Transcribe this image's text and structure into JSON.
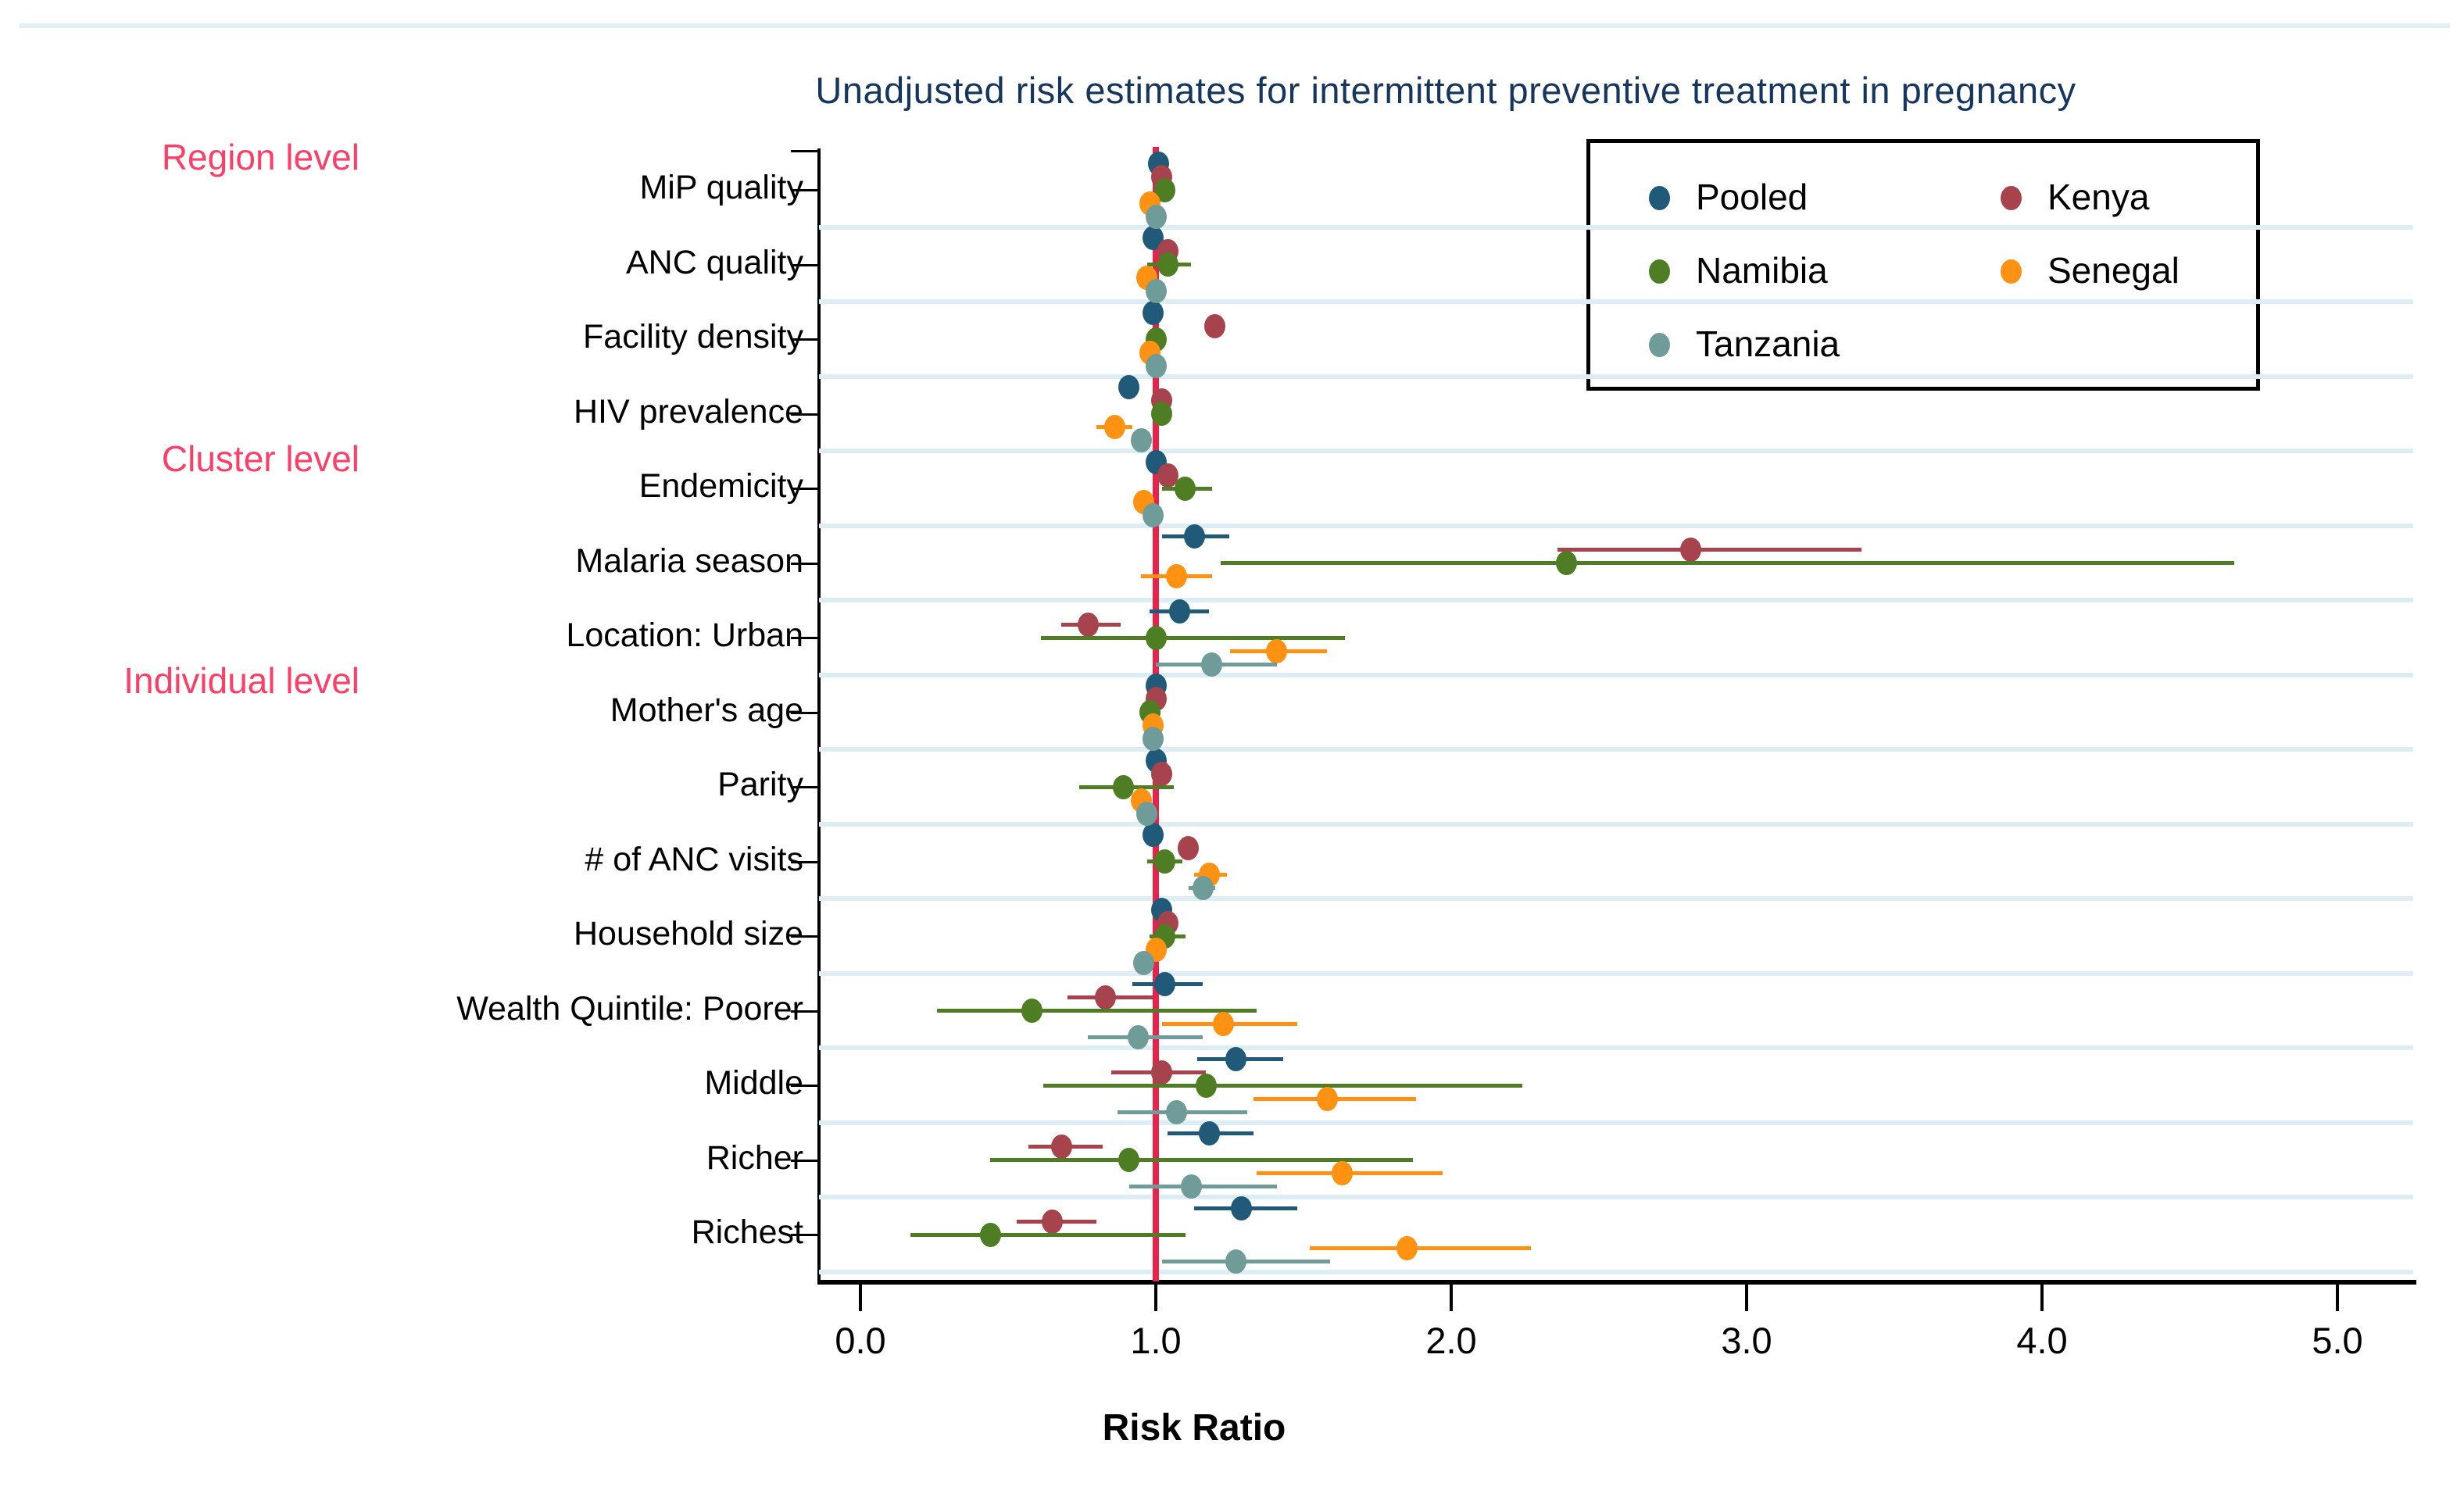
{
  "title": "Unadjusted risk estimates for intermittent preventive treatment in pregnancy",
  "xlabel": "Risk Ratio",
  "group_labels": [
    {
      "text": "Region level",
      "y": 202
    },
    {
      "text": "Cluster level",
      "y": 588
    },
    {
      "text": "Individual level",
      "y": 872
    }
  ],
  "legend": {
    "items": [
      {
        "label": "Pooled",
        "color": "#205a78",
        "col": 0,
        "row": 0
      },
      {
        "label": "Kenya",
        "color": "#a6434c",
        "col": 1,
        "row": 0
      },
      {
        "label": "Namibia",
        "color": "#4e7d24",
        "col": 0,
        "row": 1
      },
      {
        "label": "Senegal",
        "color": "#ff9212",
        "col": 1,
        "row": 1
      },
      {
        "label": "Tanzania",
        "color": "#6f9b98",
        "col": 0,
        "row": 2
      }
    ]
  },
  "colors": {
    "reference_line": "#e6234b",
    "gridline": "#dceef3",
    "title": "#17365d",
    "group_label": "#fa3f68",
    "axis": "#000000"
  },
  "chart_data": {
    "type": "scatter",
    "subtype": "forest-plot",
    "title": "Unadjusted risk estimates for intermittent preventive treatment in pregnancy",
    "xlabel": "Risk Ratio",
    "xlim": [
      0,
      5.15
    ],
    "x_ticks": [
      {
        "value": 0,
        "label": "0.0"
      },
      {
        "value": 1,
        "label": "1.0"
      },
      {
        "value": 2,
        "label": "2.0"
      },
      {
        "value": 3,
        "label": "3.0"
      },
      {
        "value": 4,
        "label": "4.0"
      },
      {
        "value": 5,
        "label": "5.0"
      }
    ],
    "reference_line_x": 1.0,
    "legend_position": "top-right",
    "grid": "between-rows",
    "categories": [
      "MiP quality",
      "ANC quality",
      "Facility density",
      "HIV prevalence",
      "Endemicity",
      "Malaria season",
      "Location: Urban",
      "Mother's age",
      "Parity",
      "# of ANC visits",
      "Household size",
      "Wealth Quintile: Poorer",
      "Middle",
      "Richer",
      "Richest"
    ],
    "series": [
      {
        "name": "Pooled",
        "color": "#205a78",
        "values": [
          {
            "rr": 1.01,
            "lo": 1.01,
            "hi": 1.01
          },
          {
            "rr": 0.99,
            "lo": 0.99,
            "hi": 0.99
          },
          {
            "rr": 0.99,
            "lo": 0.99,
            "hi": 0.99
          },
          {
            "rr": 0.91,
            "lo": 0.91,
            "hi": 0.91
          },
          {
            "rr": 1.0,
            "lo": 1.0,
            "hi": 1.0
          },
          {
            "rr": 1.13,
            "lo": 1.02,
            "hi": 1.25
          },
          {
            "rr": 1.08,
            "lo": 0.98,
            "hi": 1.18
          },
          {
            "rr": 1.0,
            "lo": 1.0,
            "hi": 1.0
          },
          {
            "rr": 1.0,
            "lo": 1.0,
            "hi": 1.0
          },
          {
            "rr": 0.99,
            "lo": 0.99,
            "hi": 0.99
          },
          {
            "rr": 1.02,
            "lo": 1.02,
            "hi": 1.02
          },
          {
            "rr": 1.03,
            "lo": 0.92,
            "hi": 1.16
          },
          {
            "rr": 1.27,
            "lo": 1.14,
            "hi": 1.43
          },
          {
            "rr": 1.18,
            "lo": 1.04,
            "hi": 1.33
          },
          {
            "rr": 1.29,
            "lo": 1.13,
            "hi": 1.48
          }
        ]
      },
      {
        "name": "Kenya",
        "color": "#a6434c",
        "values": [
          {
            "rr": 1.02,
            "lo": 1.02,
            "hi": 1.02
          },
          {
            "rr": 1.04,
            "lo": 1.04,
            "hi": 1.04
          },
          {
            "rr": 1.2,
            "lo": 1.2,
            "hi": 1.2
          },
          {
            "rr": 1.02,
            "lo": 1.02,
            "hi": 1.02
          },
          {
            "rr": 1.04,
            "lo": 1.04,
            "hi": 1.04
          },
          {
            "rr": 2.81,
            "lo": 2.36,
            "hi": 3.39
          },
          {
            "rr": 0.77,
            "lo": 0.68,
            "hi": 0.88
          },
          {
            "rr": 1.0,
            "lo": 1.0,
            "hi": 1.0
          },
          {
            "rr": 1.02,
            "lo": 1.02,
            "hi": 1.02
          },
          {
            "rr": 1.11,
            "lo": 1.11,
            "hi": 1.11
          },
          {
            "rr": 1.04,
            "lo": 1.04,
            "hi": 1.04
          },
          {
            "rr": 0.83,
            "lo": 0.7,
            "hi": 0.99
          },
          {
            "rr": 1.02,
            "lo": 0.85,
            "hi": 1.17
          },
          {
            "rr": 0.68,
            "lo": 0.57,
            "hi": 0.82
          },
          {
            "rr": 0.65,
            "lo": 0.53,
            "hi": 0.8
          }
        ]
      },
      {
        "name": "Namibia",
        "color": "#4e7d24",
        "values": [
          {
            "rr": 1.03,
            "lo": 1.03,
            "hi": 1.03
          },
          {
            "rr": 1.04,
            "lo": 0.97,
            "hi": 1.12
          },
          {
            "rr": 1.0,
            "lo": 1.0,
            "hi": 1.0
          },
          {
            "rr": 1.02,
            "lo": 1.02,
            "hi": 1.02
          },
          {
            "rr": 1.1,
            "lo": 1.02,
            "hi": 1.19
          },
          {
            "rr": 2.39,
            "lo": 1.22,
            "hi": 4.65
          },
          {
            "rr": 1.0,
            "lo": 0.61,
            "hi": 1.64
          },
          {
            "rr": 0.98,
            "lo": 0.98,
            "hi": 0.98
          },
          {
            "rr": 0.89,
            "lo": 0.74,
            "hi": 1.06
          },
          {
            "rr": 1.03,
            "lo": 0.97,
            "hi": 1.09
          },
          {
            "rr": 1.03,
            "lo": 0.98,
            "hi": 1.1
          },
          {
            "rr": 0.58,
            "lo": 0.26,
            "hi": 1.34
          },
          {
            "rr": 1.17,
            "lo": 0.62,
            "hi": 2.24
          },
          {
            "rr": 0.91,
            "lo": 0.44,
            "hi": 1.87
          },
          {
            "rr": 0.44,
            "lo": 0.17,
            "hi": 1.1
          }
        ]
      },
      {
        "name": "Senegal",
        "color": "#ff9212",
        "values": [
          {
            "rr": 0.98,
            "lo": 0.98,
            "hi": 0.98
          },
          {
            "rr": 0.97,
            "lo": 0.97,
            "hi": 0.97
          },
          {
            "rr": 0.98,
            "lo": 0.98,
            "hi": 0.98
          },
          {
            "rr": 0.86,
            "lo": 0.8,
            "hi": 0.92
          },
          {
            "rr": 0.96,
            "lo": 0.96,
            "hi": 0.96
          },
          {
            "rr": 1.07,
            "lo": 0.95,
            "hi": 1.19
          },
          {
            "rr": 1.41,
            "lo": 1.25,
            "hi": 1.58
          },
          {
            "rr": 0.99,
            "lo": 0.99,
            "hi": 0.99
          },
          {
            "rr": 0.95,
            "lo": 0.95,
            "hi": 0.95
          },
          {
            "rr": 1.18,
            "lo": 1.13,
            "hi": 1.24
          },
          {
            "rr": 1.0,
            "lo": 1.0,
            "hi": 1.0
          },
          {
            "rr": 1.23,
            "lo": 1.02,
            "hi": 1.48
          },
          {
            "rr": 1.58,
            "lo": 1.33,
            "hi": 1.88
          },
          {
            "rr": 1.63,
            "lo": 1.34,
            "hi": 1.97
          },
          {
            "rr": 1.85,
            "lo": 1.52,
            "hi": 2.27
          }
        ]
      },
      {
        "name": "Tanzania",
        "color": "#6f9b98",
        "values": [
          {
            "rr": 1.0,
            "lo": 1.0,
            "hi": 1.0
          },
          {
            "rr": 1.0,
            "lo": 1.0,
            "hi": 1.0
          },
          {
            "rr": 1.0,
            "lo": 1.0,
            "hi": 1.0
          },
          {
            "rr": 0.95,
            "lo": 0.95,
            "hi": 0.95
          },
          {
            "rr": 0.99,
            "lo": 0.99,
            "hi": 0.99
          },
          null,
          {
            "rr": 1.19,
            "lo": 1.0,
            "hi": 1.41
          },
          {
            "rr": 0.99,
            "lo": 0.99,
            "hi": 0.99
          },
          {
            "rr": 0.97,
            "lo": 0.97,
            "hi": 0.97
          },
          {
            "rr": 1.16,
            "lo": 1.11,
            "hi": 1.2
          },
          {
            "rr": 0.96,
            "lo": 0.96,
            "hi": 0.96
          },
          {
            "rr": 0.94,
            "lo": 0.77,
            "hi": 1.16
          },
          {
            "rr": 1.07,
            "lo": 0.87,
            "hi": 1.31
          },
          {
            "rr": 1.12,
            "lo": 0.91,
            "hi": 1.41
          },
          {
            "rr": 1.27,
            "lo": 1.02,
            "hi": 1.59
          }
        ]
      }
    ]
  }
}
